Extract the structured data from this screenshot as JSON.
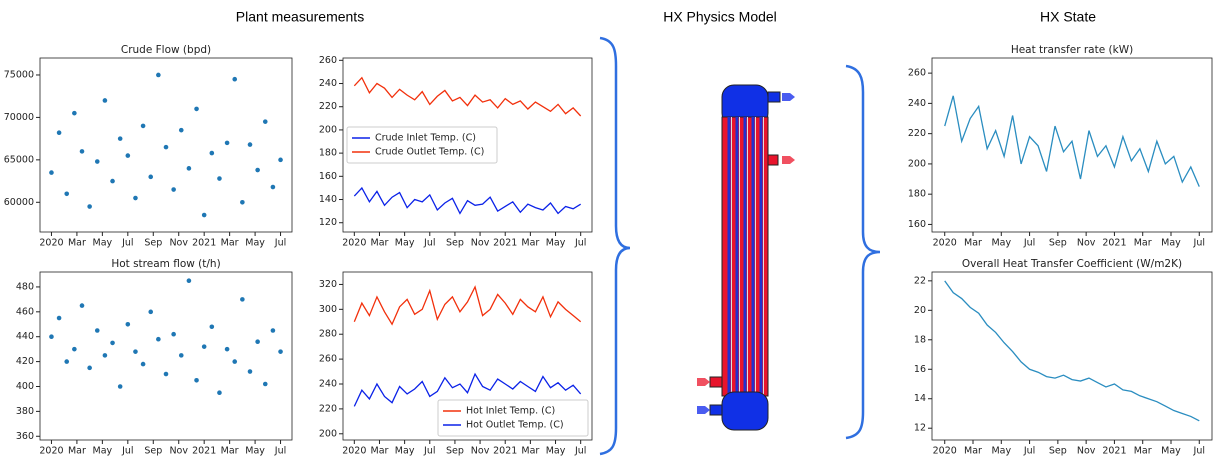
{
  "section_titles": [
    "Plant measurements",
    "HX Physics Model",
    "HX State"
  ],
  "chart_data": [
    {
      "type": "scatter",
      "title": "Crude Flow (bpd)",
      "x": [
        0,
        0.6,
        1.2,
        1.8,
        2.4,
        3,
        3.6,
        4.2,
        4.8,
        5.4,
        6,
        6.6,
        7.2,
        7.8,
        8.4,
        9,
        9.6,
        10.2,
        10.8,
        11.4,
        12,
        12.6,
        13.2,
        13.8,
        14.4,
        15,
        15.6,
        16.2,
        16.8,
        17.4,
        18
      ],
      "values": [
        63500,
        68200,
        61000,
        70500,
        66000,
        59500,
        64800,
        72000,
        62500,
        67500,
        65500,
        60500,
        69000,
        63000,
        75000,
        66500,
        61500,
        68500,
        64000,
        71000,
        58500,
        65800,
        62800,
        67000,
        74500,
        60000,
        66800,
        63800,
        69500,
        61800,
        65000
      ],
      "color": "#1f77b4",
      "xlim": [
        -0.9,
        18.9
      ],
      "xticks": [
        {
          "value": 0,
          "label": "2020"
        },
        {
          "value": 2,
          "label": "Mar"
        },
        {
          "value": 4,
          "label": "May"
        },
        {
          "value": 6,
          "label": "Jul"
        },
        {
          "value": 8,
          "label": "Sep"
        },
        {
          "value": 10,
          "label": "Nov"
        },
        {
          "value": 12,
          "label": "2021"
        },
        {
          "value": 14,
          "label": "Mar"
        },
        {
          "value": 16,
          "label": "May"
        },
        {
          "value": 18,
          "label": "Jul"
        }
      ],
      "ylim": [
        56500,
        77000
      ],
      "yticks": [
        60000,
        65000,
        70000,
        75000
      ]
    },
    {
      "type": "line",
      "x": [
        0,
        0.6,
        1.2,
        1.8,
        2.4,
        3,
        3.6,
        4.2,
        4.8,
        5.4,
        6,
        6.6,
        7.2,
        7.8,
        8.4,
        9,
        9.6,
        10.2,
        10.8,
        11.4,
        12,
        12.6,
        13.2,
        13.8,
        14.4,
        15,
        15.6,
        16.2,
        16.8,
        17.4,
        18
      ],
      "series": [
        {
          "name": "Crude Inlet Temp. (C)",
          "color": "#0b22e8",
          "values": [
            143,
            150,
            138,
            147,
            135,
            142,
            146,
            133,
            140,
            138,
            144,
            131,
            137,
            141,
            128,
            139,
            135,
            136,
            142,
            130,
            134,
            138,
            129,
            136,
            133,
            131,
            137,
            128,
            134,
            132,
            136
          ]
        },
        {
          "name": "Crude Outlet Temp. (C)",
          "color": "#f2300c",
          "values": [
            238,
            245,
            232,
            240,
            236,
            228,
            235,
            230,
            226,
            233,
            222,
            229,
            234,
            225,
            228,
            221,
            230,
            224,
            226,
            219,
            227,
            222,
            225,
            218,
            224,
            220,
            216,
            222,
            214,
            219,
            212
          ]
        }
      ],
      "legend": "center left",
      "xlim": [
        -0.9,
        18.9
      ],
      "xticks": [
        {
          "value": 0,
          "label": "2020"
        },
        {
          "value": 2,
          "label": "Mar"
        },
        {
          "value": 4,
          "label": "May"
        },
        {
          "value": 6,
          "label": "Jul"
        },
        {
          "value": 8,
          "label": "Sep"
        },
        {
          "value": 10,
          "label": "Nov"
        },
        {
          "value": 12,
          "label": "2021"
        },
        {
          "value": 14,
          "label": "Mar"
        },
        {
          "value": 16,
          "label": "May"
        },
        {
          "value": 18,
          "label": "Jul"
        }
      ],
      "ylim": [
        112,
        262
      ],
      "yticks": [
        120,
        140,
        160,
        180,
        200,
        220,
        240,
        260
      ]
    },
    {
      "type": "scatter",
      "title": "Hot stream flow (t/h)",
      "x": [
        0,
        0.6,
        1.2,
        1.8,
        2.4,
        3,
        3.6,
        4.2,
        4.8,
        5.4,
        6,
        6.6,
        7.2,
        7.8,
        8.4,
        9,
        9.6,
        10.2,
        10.8,
        11.4,
        12,
        12.6,
        13.2,
        13.8,
        14.4,
        15,
        15.6,
        16.2,
        16.8,
        17.4,
        18
      ],
      "values": [
        440,
        455,
        420,
        430,
        465,
        415,
        445,
        425,
        435,
        400,
        450,
        428,
        418,
        460,
        438,
        410,
        442,
        425,
        485,
        405,
        432,
        448,
        395,
        430,
        420,
        470,
        412,
        436,
        402,
        445,
        428
      ],
      "color": "#1f77b4",
      "xlim": [
        -0.9,
        18.9
      ],
      "xticks": [
        {
          "value": 0,
          "label": "2020"
        },
        {
          "value": 2,
          "label": "Mar"
        },
        {
          "value": 4,
          "label": "May"
        },
        {
          "value": 6,
          "label": "Jul"
        },
        {
          "value": 8,
          "label": "Sep"
        },
        {
          "value": 10,
          "label": "Nov"
        },
        {
          "value": 12,
          "label": "2021"
        },
        {
          "value": 14,
          "label": "Mar"
        },
        {
          "value": 16,
          "label": "May"
        },
        {
          "value": 18,
          "label": "Jul"
        }
      ],
      "ylim": [
        357,
        492
      ],
      "yticks": [
        360,
        380,
        400,
        420,
        440,
        460,
        480
      ]
    },
    {
      "type": "line",
      "x": [
        0,
        0.6,
        1.2,
        1.8,
        2.4,
        3,
        3.6,
        4.2,
        4.8,
        5.4,
        6,
        6.6,
        7.2,
        7.8,
        8.4,
        9,
        9.6,
        10.2,
        10.8,
        11.4,
        12,
        12.6,
        13.2,
        13.8,
        14.4,
        15,
        15.6,
        16.2,
        16.8,
        17.4,
        18
      ],
      "series": [
        {
          "name": "Hot Inlet Temp. (C)",
          "color": "#f2300c",
          "values": [
            290,
            305,
            295,
            310,
            298,
            288,
            302,
            308,
            296,
            300,
            315,
            292,
            304,
            310,
            298,
            306,
            318,
            295,
            300,
            312,
            305,
            296,
            308,
            302,
            298,
            310,
            294,
            306,
            300,
            295,
            290
          ]
        },
        {
          "name": "Hot Outlet Temp. (C)",
          "color": "#0b22e8",
          "values": [
            222,
            235,
            228,
            240,
            230,
            225,
            238,
            232,
            236,
            242,
            230,
            234,
            245,
            237,
            240,
            233,
            248,
            238,
            235,
            244,
            240,
            236,
            242,
            238,
            234,
            246,
            237,
            241,
            235,
            239,
            232
          ]
        }
      ],
      "legend": "lower right",
      "xlim": [
        -0.9,
        18.9
      ],
      "xticks": [
        {
          "value": 0,
          "label": "2020"
        },
        {
          "value": 2,
          "label": "Mar"
        },
        {
          "value": 4,
          "label": "May"
        },
        {
          "value": 6,
          "label": "Jul"
        },
        {
          "value": 8,
          "label": "Sep"
        },
        {
          "value": 10,
          "label": "Nov"
        },
        {
          "value": 12,
          "label": "2021"
        },
        {
          "value": 14,
          "label": "Mar"
        },
        {
          "value": 16,
          "label": "May"
        },
        {
          "value": 18,
          "label": "Jul"
        }
      ],
      "ylim": [
        195,
        330
      ],
      "yticks": [
        200,
        220,
        240,
        260,
        280,
        300,
        320
      ]
    },
    {
      "type": "line",
      "title": "Heat transfer rate (kW)",
      "x": [
        0,
        0.6,
        1.2,
        1.8,
        2.4,
        3,
        3.6,
        4.2,
        4.8,
        5.4,
        6,
        6.6,
        7.2,
        7.8,
        8.4,
        9,
        9.6,
        10.2,
        10.8,
        11.4,
        12,
        12.6,
        13.2,
        13.8,
        14.4,
        15,
        15.6,
        16.2,
        16.8,
        17.4,
        18
      ],
      "values": [
        225,
        245,
        215,
        230,
        238,
        210,
        222,
        205,
        232,
        200,
        218,
        212,
        195,
        225,
        208,
        215,
        190,
        222,
        205,
        212,
        198,
        218,
        202,
        210,
        195,
        215,
        200,
        205,
        188,
        198,
        185
      ],
      "color": "#2a8dc0",
      "xlim": [
        -0.9,
        18.9
      ],
      "xticks": [
        {
          "value": 0,
          "label": "2020"
        },
        {
          "value": 2,
          "label": "Mar"
        },
        {
          "value": 4,
          "label": "May"
        },
        {
          "value": 6,
          "label": "Jul"
        },
        {
          "value": 8,
          "label": "Sep"
        },
        {
          "value": 10,
          "label": "Nov"
        },
        {
          "value": 12,
          "label": "2021"
        },
        {
          "value": 14,
          "label": "Mar"
        },
        {
          "value": 16,
          "label": "May"
        },
        {
          "value": 18,
          "label": "Jul"
        }
      ],
      "ylim": [
        155,
        270
      ],
      "yticks": [
        160,
        180,
        200,
        220,
        240,
        260
      ]
    },
    {
      "type": "line",
      "title": "Overall Heat Transfer Coefficient (W/m2K)",
      "x": [
        0,
        0.6,
        1.2,
        1.8,
        2.4,
        3,
        3.6,
        4.2,
        4.8,
        5.4,
        6,
        6.6,
        7.2,
        7.8,
        8.4,
        9,
        9.6,
        10.2,
        10.8,
        11.4,
        12,
        12.6,
        13.2,
        13.8,
        14.4,
        15,
        15.6,
        16.2,
        16.8,
        17.4,
        18
      ],
      "values": [
        22.0,
        21.2,
        20.8,
        20.2,
        19.8,
        19.0,
        18.5,
        17.8,
        17.2,
        16.5,
        16.0,
        15.8,
        15.5,
        15.4,
        15.6,
        15.3,
        15.2,
        15.4,
        15.1,
        14.8,
        15.0,
        14.6,
        14.5,
        14.2,
        14.0,
        13.8,
        13.5,
        13.2,
        13.0,
        12.8,
        12.5
      ],
      "color": "#2a8dc0",
      "xlim": [
        -0.9,
        18.9
      ],
      "xticks": [
        {
          "value": 0,
          "label": "2020"
        },
        {
          "value": 2,
          "label": "Mar"
        },
        {
          "value": 4,
          "label": "May"
        },
        {
          "value": 6,
          "label": "Jul"
        },
        {
          "value": 8,
          "label": "Sep"
        },
        {
          "value": 10,
          "label": "Nov"
        },
        {
          "value": 12,
          "label": "2021"
        },
        {
          "value": 14,
          "label": "Mar"
        },
        {
          "value": 16,
          "label": "May"
        },
        {
          "value": 18,
          "label": "Jul"
        }
      ],
      "ylim": [
        11.2,
        22.6
      ],
      "yticks": [
        12,
        14,
        16,
        18,
        20,
        22
      ]
    }
  ]
}
